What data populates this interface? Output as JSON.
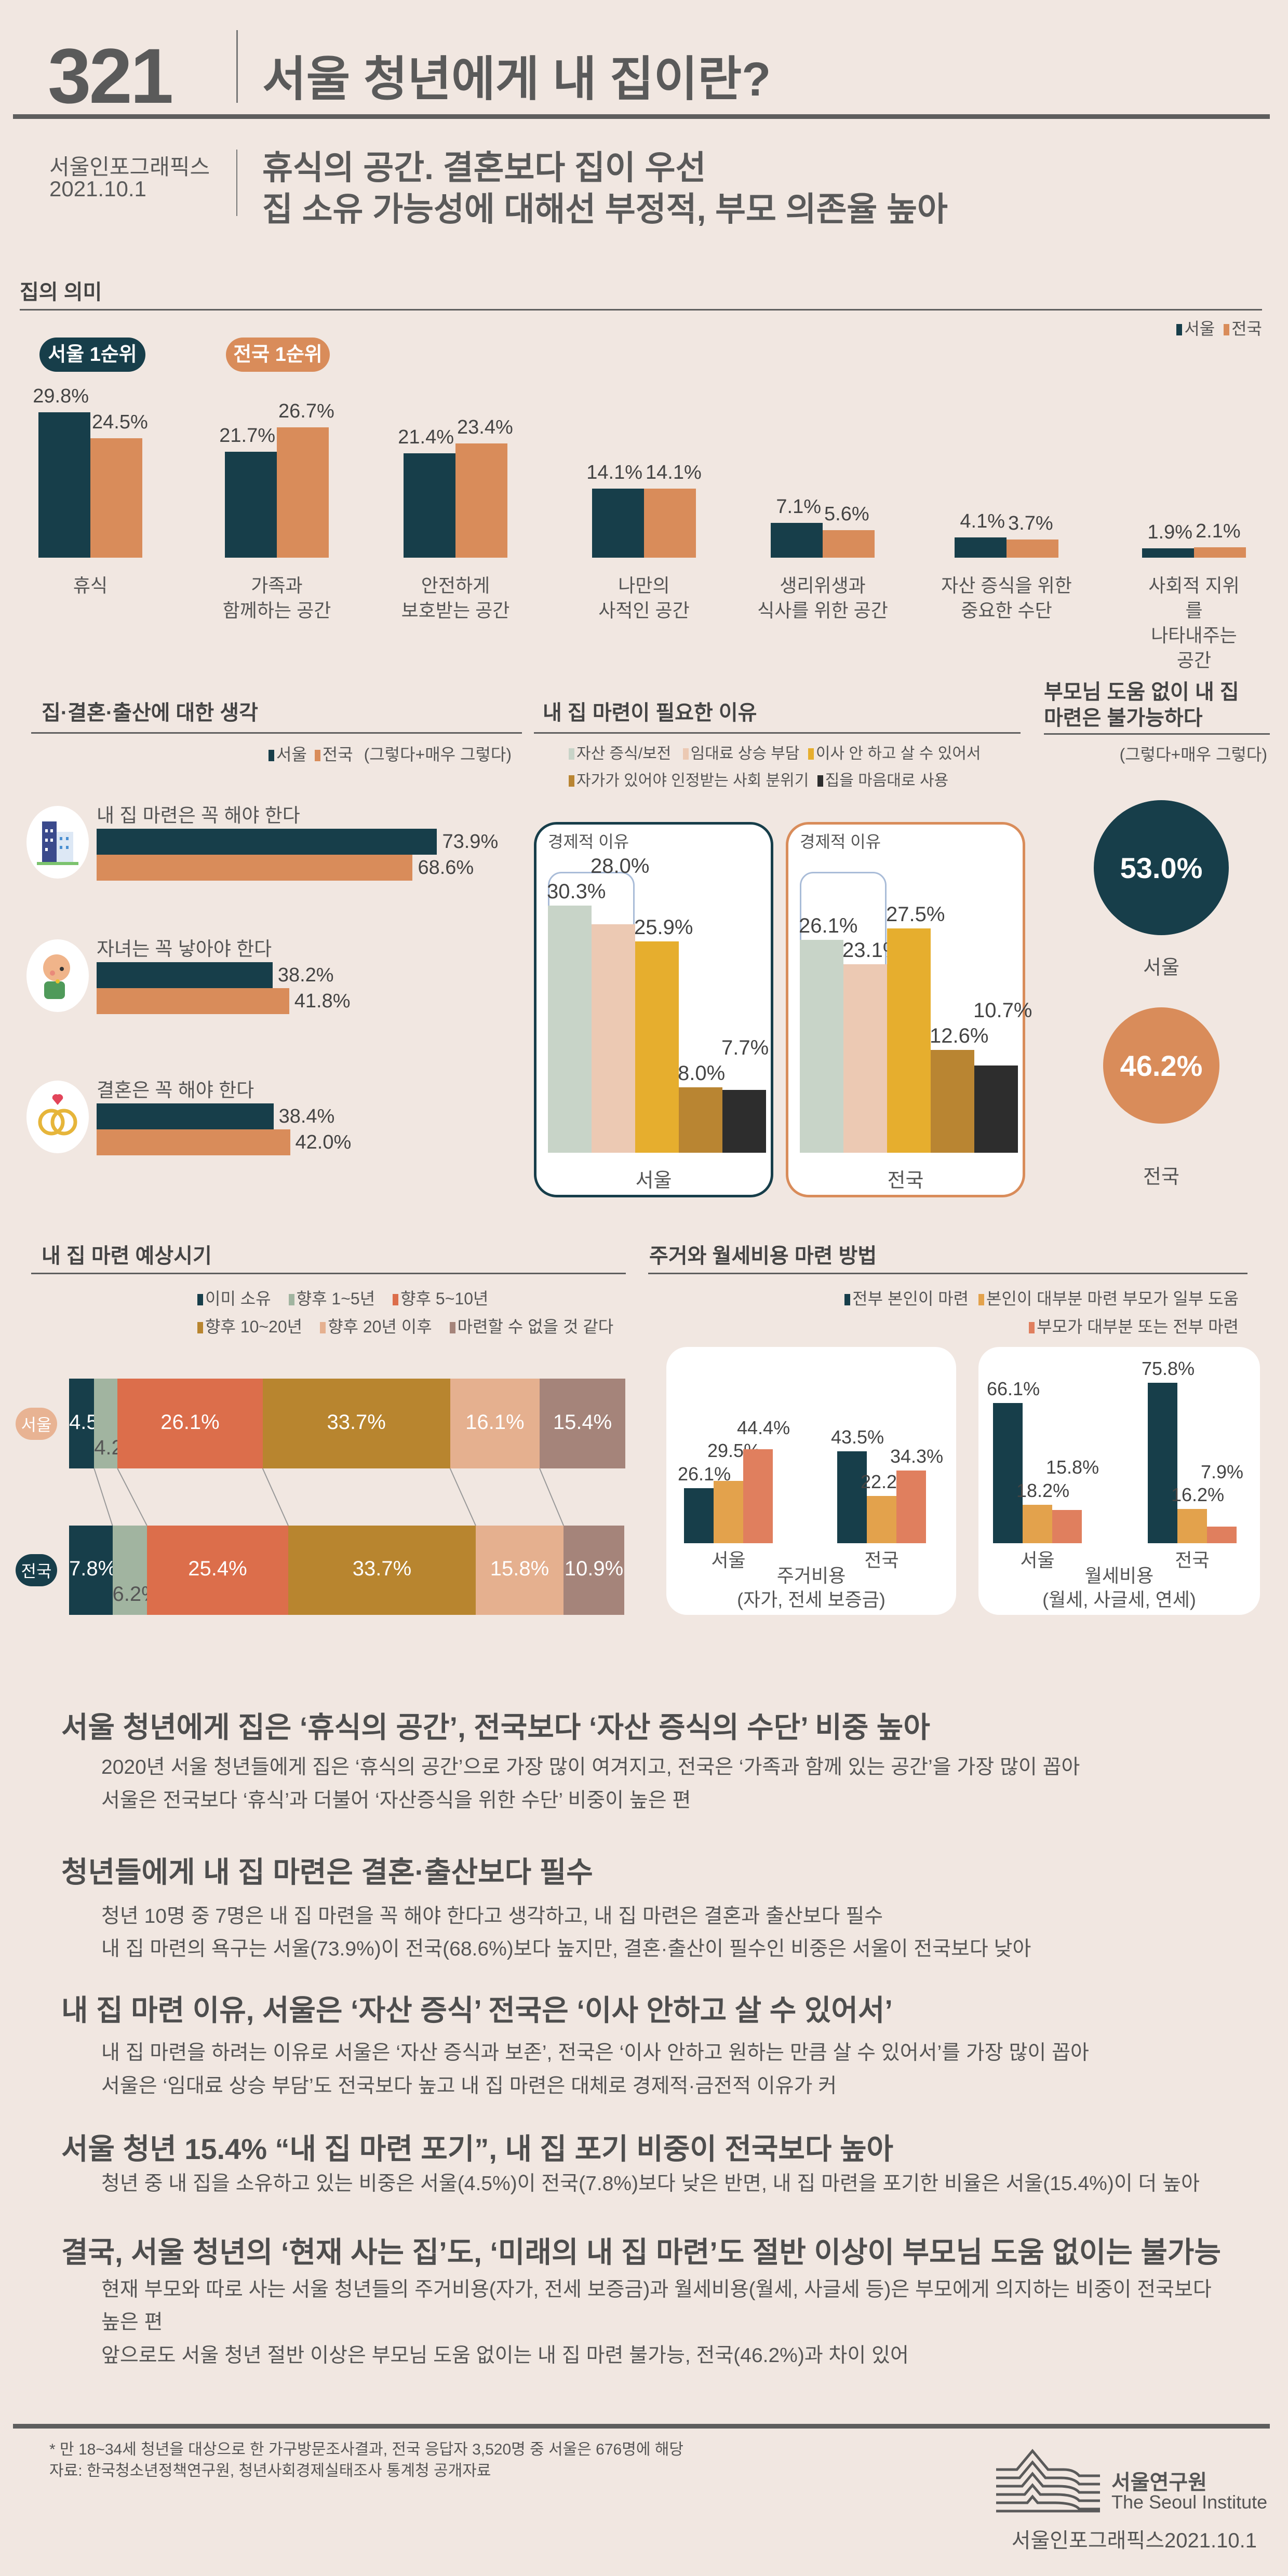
{
  "header": {
    "number": "321",
    "title": "서울 청년에게 내 집이란?",
    "publisher": "서울인포그래픽스",
    "date": "2021.10.1",
    "subtitle_line1": "휴식의 공간. 결혼보다 집이 우선",
    "subtitle_line2": "집 소유 가능성에 대해선 부정적, 부모 의존율 높아"
  },
  "colors": {
    "seoul": "#173e4a",
    "national": "#d98c5a",
    "background": "#f1e7e1"
  },
  "meaning": {
    "title": "집의 의미",
    "legend": [
      "서울",
      "전국"
    ],
    "badge_seoul": "서울 1순위",
    "badge_national": "전국 1순위"
  },
  "attitude": {
    "title": "집·결혼·출산에 대한 생각",
    "legend": [
      "서울",
      "전국"
    ],
    "legend_note": "(그렇다+매우 그렇다)"
  },
  "reasons": {
    "title": "내 집 마련이 필요한 이유",
    "legend": [
      "자산 증식/보전",
      "임대료 상승 부담",
      "이사 안 하고 살 수 있어서",
      "자가가 있어야 인정받는 사회 분위기",
      "집을 마음대로 사용"
    ],
    "economic_label": "경제적 이유",
    "colors": [
      "#c8d4c8",
      "#ecc9b3",
      "#e6ae2e",
      "#b98532",
      "#2d2d2d"
    ]
  },
  "parents": {
    "title_line1": "부모님 도움 없이 내 집",
    "title_line2": "마련은 불가능하다",
    "note": "(그렇다+매우 그렇다)",
    "seoul_value": "53.0%",
    "seoul_label": "서울",
    "national_value": "46.2%",
    "national_label": "전국"
  },
  "timing": {
    "title": "내 집 마련 예상시기",
    "legend": [
      "이미 소유",
      "향후 1~5년",
      "향후 5~10년",
      "향후 10~20년",
      "향후 20년 이후",
      "마련할 수 없을 것 같다"
    ],
    "colors": [
      "#173e4a",
      "#a1b4a0",
      "#dc6e4b",
      "#b8852f",
      "#e5b08f",
      "#a5847a"
    ],
    "rows": [
      "서울",
      "전국"
    ]
  },
  "funding": {
    "title": "주거와 월세비용 마련 방법",
    "legend": [
      "전부 본인이 마련",
      "본인이 대부분 마련 부모가 일부 도움",
      "부모가 대부분 또는 전부 마련"
    ],
    "colors": [
      "#173e4a",
      "#e3a24c",
      "#e07f5e"
    ],
    "panel1_title": "주거비용",
    "panel1_sub": "(자가, 전세 보증금)",
    "panel2_title": "월세비용",
    "panel2_sub": "(월세, 사글세, 연세)"
  },
  "chart_data": [
    {
      "type": "bar",
      "title": "집의 의미",
      "categories": [
        "휴식",
        "가족과\n함께하는 공간",
        "안전하게\n보호받는 공간",
        "나만의\n사적인 공간",
        "생리위생과\n식사를 위한 공간",
        "자산 증식을 위한\n중요한 수단",
        "사회적 지위를\n나타내주는 공간"
      ],
      "series": [
        {
          "name": "서울",
          "values": [
            29.8,
            21.7,
            21.4,
            14.1,
            7.1,
            4.1,
            1.9
          ],
          "labels": [
            "29.8%",
            "21.7%",
            "21.4%",
            "14.1%",
            "7.1%",
            "4.1%",
            "1.9%"
          ]
        },
        {
          "name": "전국",
          "values": [
            24.5,
            26.7,
            23.4,
            14.1,
            5.6,
            3.7,
            2.1
          ],
          "labels": [
            "24.5%",
            "26.7%",
            "23.4%",
            "14.1%",
            "5.6%",
            "3.7%",
            "2.1%"
          ]
        }
      ],
      "legend": "top-right"
    },
    {
      "type": "bar",
      "orientation": "horizontal",
      "title": "집·결혼·출산에 대한 생각",
      "categories": [
        "내 집 마련은 꼭 해야 한다",
        "자녀는 꼭 낳아야 한다",
        "결혼은 꼭 해야 한다"
      ],
      "icons": [
        "building-icon",
        "baby-icon",
        "rings-icon"
      ],
      "series": [
        {
          "name": "서울",
          "values": [
            73.9,
            38.2,
            38.4
          ],
          "labels": [
            "73.9%",
            "38.2%",
            "38.4%"
          ]
        },
        {
          "name": "전국",
          "values": [
            68.6,
            41.8,
            42.0
          ],
          "labels": [
            "68.6%",
            "41.8%",
            "42.0%"
          ]
        }
      ]
    },
    {
      "type": "bar",
      "title": "내 집 마련이 필요한 이유",
      "categories": [
        "자산 증식/보전",
        "임대료 상승 부담",
        "이사 안 하고 살 수 있어서",
        "자가가 있어야 인정받는 사회 분위기",
        "집을 마음대로 사용"
      ],
      "panels": [
        {
          "name": "서울",
          "values": [
            30.3,
            28.0,
            25.9,
            8.0,
            7.7
          ],
          "labels": [
            "30.3%",
            "28.0%",
            "25.9%",
            "8.0%",
            "7.7%"
          ]
        },
        {
          "name": "전국",
          "values": [
            26.1,
            23.1,
            27.5,
            12.6,
            10.7
          ],
          "labels": [
            "26.1%",
            "23.1%",
            "27.5%",
            "12.6%",
            "10.7%"
          ]
        }
      ]
    },
    {
      "type": "pie",
      "title": "부모님 도움 없이 내 집 마련은 불가능하다",
      "categories": [
        "서울",
        "전국"
      ],
      "values": [
        53.0,
        46.2
      ]
    },
    {
      "type": "bar",
      "stacked": true,
      "title": "내 집 마련 예상시기",
      "categories": [
        "서울",
        "전국"
      ],
      "series": [
        {
          "name": "이미 소유",
          "values": [
            4.5,
            7.8
          ],
          "labels": [
            "4.5%",
            "7.8%"
          ]
        },
        {
          "name": "향후 1~5년",
          "values": [
            4.2,
            6.2
          ],
          "labels": [
            "4.2%",
            "6.2%"
          ]
        },
        {
          "name": "향후 5~10년",
          "values": [
            26.1,
            25.4
          ],
          "labels": [
            "26.1%",
            "25.4%"
          ]
        },
        {
          "name": "향후 10~20년",
          "values": [
            33.7,
            33.7
          ],
          "labels": [
            "33.7%",
            "33.7%"
          ]
        },
        {
          "name": "향후 20년 이후",
          "values": [
            16.1,
            15.8
          ],
          "labels": [
            "16.1%",
            "15.8%"
          ]
        },
        {
          "name": "마련할 수 없을 것 같다",
          "values": [
            15.4,
            10.9
          ],
          "labels": [
            "15.4%",
            "10.9%"
          ]
        }
      ]
    },
    {
      "type": "bar",
      "title": "주거와 월세비용 마련 방법",
      "panels": [
        {
          "name": "주거비용",
          "categories": [
            "서울",
            "전국"
          ],
          "series": [
            {
              "name": "전부 본인이 마련",
              "values": [
                26.1,
                43.5
              ],
              "labels": [
                "26.1%",
                "43.5%"
              ]
            },
            {
              "name": "본인이 대부분 마련 부모가 일부 도움",
              "values": [
                29.5,
                22.2
              ],
              "labels": [
                "29.5%",
                "22.2%"
              ]
            },
            {
              "name": "부모가 대부분 또는 전부 마련",
              "values": [
                44.4,
                34.3
              ],
              "labels": [
                "44.4%",
                "34.3%"
              ]
            }
          ]
        },
        {
          "name": "월세비용",
          "categories": [
            "서울",
            "전국"
          ],
          "series": [
            {
              "name": "전부 본인이 마련",
              "values": [
                66.1,
                75.8
              ],
              "labels": [
                "66.1%",
                "75.8%"
              ]
            },
            {
              "name": "본인이 대부분 마련 부모가 일부 도움",
              "values": [
                18.2,
                16.2
              ],
              "labels": [
                "18.2%",
                "16.2%"
              ]
            },
            {
              "name": "부모가 대부분 또는 전부 마련",
              "values": [
                15.8,
                7.9
              ],
              "labels": [
                "15.8%",
                "7.9%"
              ]
            }
          ]
        }
      ]
    }
  ],
  "findings": [
    {
      "heading": "서울 청년에게 집은 ‘휴식의 공간’, 전국보다 ‘자산 증식의 수단’ 비중 높아",
      "lines": [
        "2020년 서울 청년들에게 집은 ‘휴식의 공간’으로 가장 많이 여겨지고, 전국은 ‘가족과 함께 있는 공간’을 가장 많이 꼽아",
        "서울은 전국보다 ‘휴식’과 더불어 ‘자산증식을 위한 수단’ 비중이 높은 편"
      ]
    },
    {
      "heading": "청년들에게 내 집 마련은 결혼·출산보다 필수",
      "lines": [
        "청년 10명 중 7명은 내 집 마련을 꼭 해야 한다고 생각하고, 내 집 마련은 결혼과 출산보다 필수",
        "내 집 마련의 욕구는 서울(73.9%)이 전국(68.6%)보다 높지만, 결혼·출산이 필수인 비중은 서울이 전국보다 낮아"
      ]
    },
    {
      "heading": "내 집 마련 이유, 서울은 ‘자산 증식’ 전국은 ‘이사 안하고 살 수 있어서’",
      "lines": [
        "내 집 마련을 하려는 이유로 서울은 ‘자산 증식과 보존’, 전국은 ‘이사 안하고 원하는 만큼 살 수 있어서’를 가장 많이 꼽아",
        "서울은 ‘임대료 상승 부담’도 전국보다 높고 내 집 마련은 대체로 경제적·금전적 이유가 커"
      ]
    },
    {
      "heading": "서울 청년 15.4% “내 집 마련 포기”, 내 집 포기 비중이 전국보다 높아",
      "lines": [
        "청년 중 내 집을 소유하고 있는 비중은 서울(4.5%)이 전국(7.8%)보다 낮은 반면, 내 집 마련을 포기한 비율은 서울(15.4%)이 더 높아"
      ]
    },
    {
      "heading": "결국, 서울 청년의 ‘현재 사는 집’도, ‘미래의 내 집 마련’도 절반 이상이 부모님 도움 없이는 불가능",
      "lines": [
        "현재 부모와 따로 사는 서울 청년들의 주거비용(자가, 전세 보증금)과 월세비용(월세, 사글세 등)은 부모에게 의지하는 비중이 전국보다",
        "높은 편",
        "앞으로도 서울 청년 절반 이상은 부모님 도움 없이는 내 집 마련 불가능, 전국(46.2%)과 차이 있어"
      ]
    }
  ],
  "footer": {
    "note": "* 만 18~34세 청년을 대상으로 한 가구방문조사결과, 전국 응답자 3,520명 중 서울은 676명에 해당",
    "source": "자료: 한국청소년정책연구원, 청년사회경제실태조사 통계청 공개자료",
    "logo_ko": "서울연구원",
    "logo_en": "The Seoul Institute",
    "credit": "서울인포그래픽스2021.10.1"
  }
}
